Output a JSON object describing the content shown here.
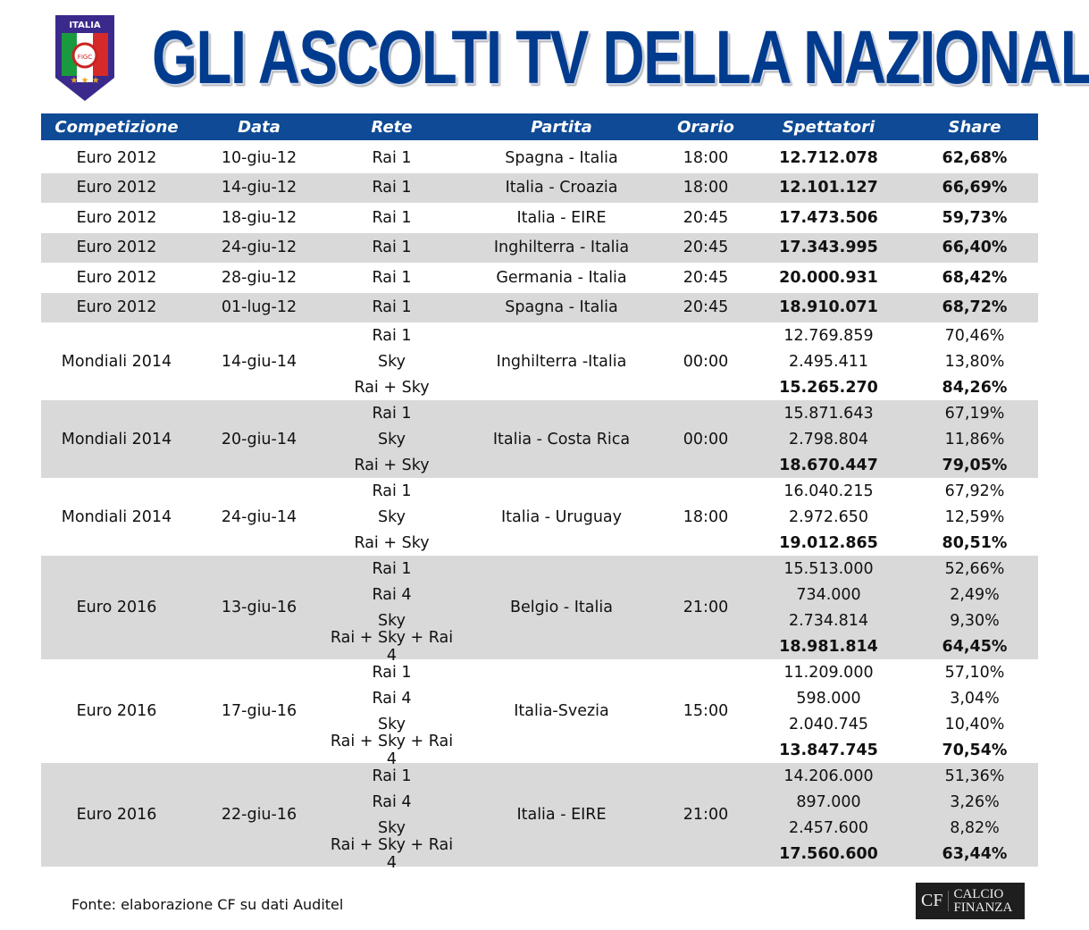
{
  "header": {
    "title": "GLI ASCOLTI TV DELLA NAZIONALE",
    "logo_text": "ITALIA",
    "logo_badge": "FIGC"
  },
  "columns": [
    "Competizione",
    "Data",
    "Rete",
    "Partita",
    "Orario",
    "Spettatori",
    "Share"
  ],
  "rows": [
    {
      "competizione": "Euro 2012",
      "data": "10-giu-12",
      "partita": "Spagna - Italia",
      "orario": "18:00",
      "lines": [
        {
          "rete": "Rai 1",
          "spettatori": "12.712.078",
          "share": "62,68%",
          "bold": true
        }
      ]
    },
    {
      "competizione": "Euro 2012",
      "data": "14-giu-12",
      "partita": "Italia - Croazia",
      "orario": "18:00",
      "lines": [
        {
          "rete": "Rai 1",
          "spettatori": "12.101.127",
          "share": "66,69%",
          "bold": true
        }
      ]
    },
    {
      "competizione": "Euro 2012",
      "data": "18-giu-12",
      "partita": "Italia - EIRE",
      "orario": "20:45",
      "lines": [
        {
          "rete": "Rai 1",
          "spettatori": "17.473.506",
          "share": "59,73%",
          "bold": true
        }
      ]
    },
    {
      "competizione": "Euro 2012",
      "data": "24-giu-12",
      "partita": "Inghilterra - Italia",
      "orario": "20:45",
      "lines": [
        {
          "rete": "Rai 1",
          "spettatori": "17.343.995",
          "share": "66,40%",
          "bold": true
        }
      ]
    },
    {
      "competizione": "Euro 2012",
      "data": "28-giu-12",
      "partita": "Germania - Italia",
      "orario": "20:45",
      "lines": [
        {
          "rete": "Rai 1",
          "spettatori": "20.000.931",
          "share": "68,42%",
          "bold": true
        }
      ]
    },
    {
      "competizione": "Euro 2012",
      "data": "01-lug-12",
      "partita": "Spagna - Italia",
      "orario": "20:45",
      "lines": [
        {
          "rete": "Rai 1",
          "spettatori": "18.910.071",
          "share": "68,72%",
          "bold": true
        }
      ]
    },
    {
      "competizione": "Mondiali 2014",
      "data": "14-giu-14",
      "partita": "Inghilterra -Italia",
      "orario": "00:00",
      "lines": [
        {
          "rete": "Rai 1",
          "spettatori": "12.769.859",
          "share": "70,46%"
        },
        {
          "rete": "Sky",
          "spettatori": "2.495.411",
          "share": "13,80%"
        },
        {
          "rete": "Rai + Sky",
          "spettatori": "15.265.270",
          "share": "84,26%",
          "bold": true
        }
      ]
    },
    {
      "competizione": "Mondiali 2014",
      "data": "20-giu-14",
      "partita": "Italia - Costa Rica",
      "orario": "00:00",
      "lines": [
        {
          "rete": "Rai 1",
          "spettatori": "15.871.643",
          "share": "67,19%"
        },
        {
          "rete": "Sky",
          "spettatori": "2.798.804",
          "share": "11,86%"
        },
        {
          "rete": "Rai + Sky",
          "spettatori": "18.670.447",
          "share": "79,05%",
          "bold": true
        }
      ]
    },
    {
      "competizione": "Mondiali 2014",
      "data": "24-giu-14",
      "partita": "Italia - Uruguay",
      "orario": "18:00",
      "lines": [
        {
          "rete": "Rai 1",
          "spettatori": "16.040.215",
          "share": "67,92%"
        },
        {
          "rete": "Sky",
          "spettatori": "2.972.650",
          "share": "12,59%"
        },
        {
          "rete": "Rai + Sky",
          "spettatori": "19.012.865",
          "share": "80,51%",
          "bold": true
        }
      ]
    },
    {
      "competizione": "Euro 2016",
      "data": "13-giu-16",
      "partita": "Belgio - Italia",
      "orario": "21:00",
      "lines": [
        {
          "rete": "Rai 1",
          "spettatori": "15.513.000",
          "share": "52,66%"
        },
        {
          "rete": "Rai 4",
          "spettatori": "734.000",
          "share": "2,49%"
        },
        {
          "rete": "Sky",
          "spettatori": "2.734.814",
          "share": "9,30%"
        },
        {
          "rete": "Rai + Sky + Rai 4",
          "spettatori": "18.981.814",
          "share": "64,45%",
          "bold": true
        }
      ]
    },
    {
      "competizione": "Euro 2016",
      "data": "17-giu-16",
      "partita": "Italia-Svezia",
      "orario": "15:00",
      "lines": [
        {
          "rete": "Rai 1",
          "spettatori": "11.209.000",
          "share": "57,10%"
        },
        {
          "rete": "Rai 4",
          "spettatori": "598.000",
          "share": "3,04%"
        },
        {
          "rete": "Sky",
          "spettatori": "2.040.745",
          "share": "10,40%"
        },
        {
          "rete": "Rai + Sky + Rai 4",
          "spettatori": "13.847.745",
          "share": "70,54%",
          "bold": true
        }
      ]
    },
    {
      "competizione": "Euro 2016",
      "data": "22-giu-16",
      "partita": "Italia - EIRE",
      "orario": "21:00",
      "lines": [
        {
          "rete": "Rai 1",
          "spettatori": "14.206.000",
          "share": "51,36%"
        },
        {
          "rete": "Rai 4",
          "spettatori": "897.000",
          "share": "3,26%"
        },
        {
          "rete": "Sky",
          "spettatori": "2.457.600",
          "share": "8,82%"
        },
        {
          "rete": "Rai + Sky + Rai 4",
          "spettatori": "17.560.600",
          "share": "63,44%",
          "bold": true
        }
      ]
    }
  ],
  "footer": {
    "source": "Fonte: elaborazione CF su dati Auditel",
    "brand_short": "CF",
    "brand_line1": "CALCIO",
    "brand_line2": "FINANZA"
  },
  "colors": {
    "header_bg": "#0e4a95",
    "title": "#003b8e",
    "row_alt": "#d9d9d9"
  }
}
